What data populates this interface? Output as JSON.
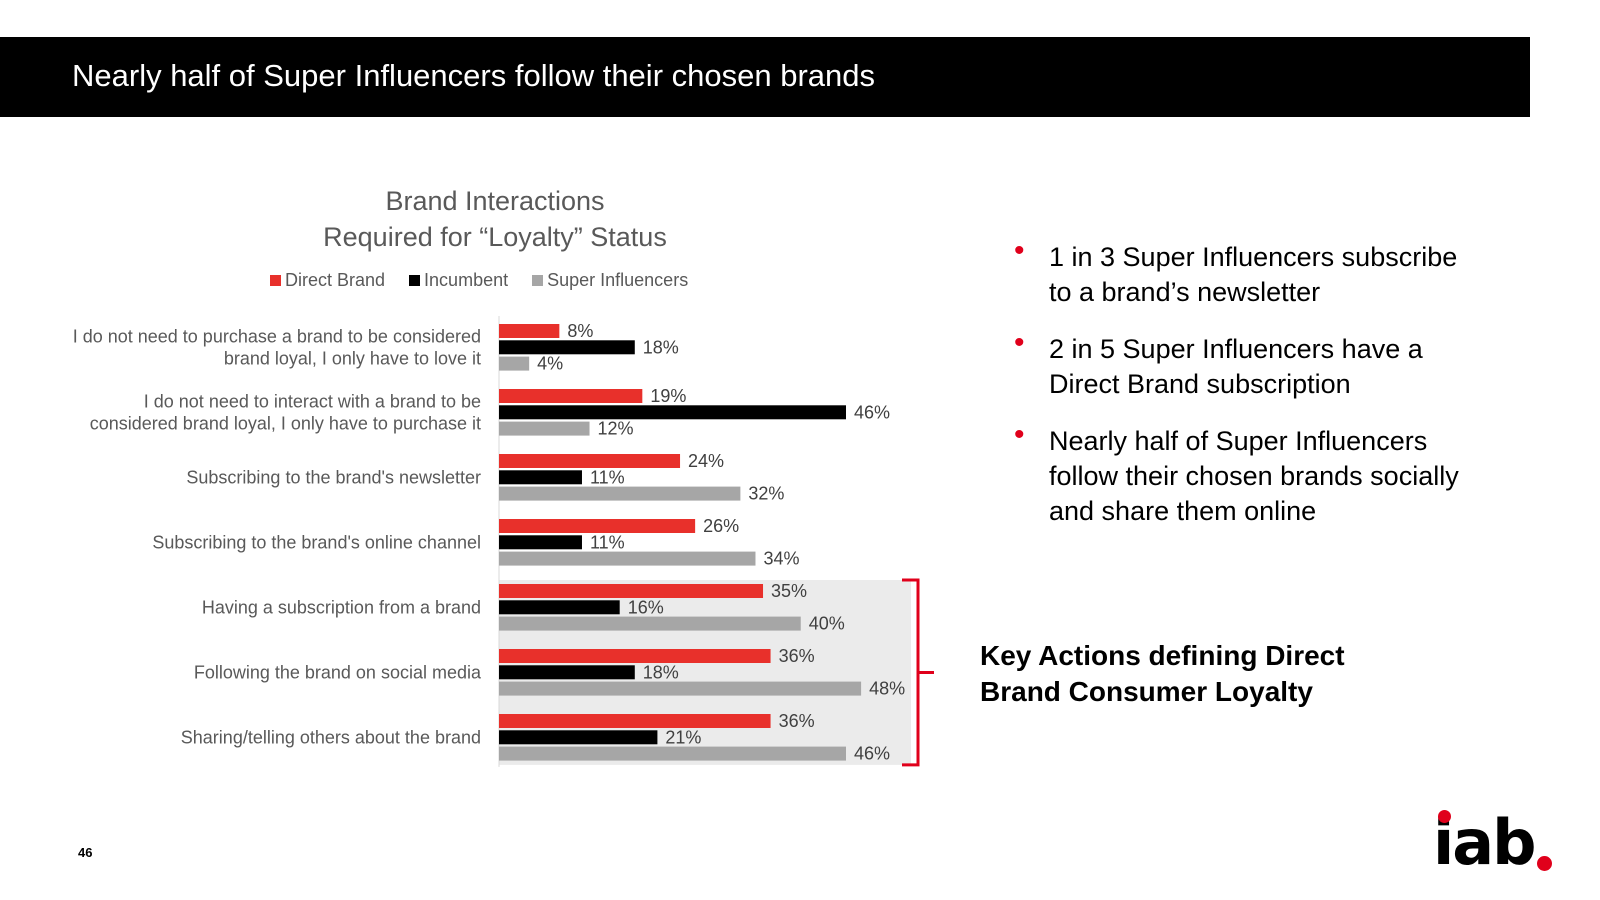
{
  "page": {
    "title": "Nearly half of Super Influencers follow their chosen brands",
    "page_number": "46",
    "logo_text": "iab"
  },
  "bullets": [
    "1 in 3 Super Influencers subscribe to a brand’s newsletter",
    "2 in 5 Super Influencers have a Direct Brand subscription",
    "Nearly half of Super Influencers follow their chosen brands socially and share them online"
  ],
  "bullet_symbol": "•",
  "key_actions": "Key Actions defining Direct Brand Consumer Loyalty",
  "colors": {
    "direct_brand": "#e8302b",
    "incumbent": "#000000",
    "super_influencers": "#a6a6a6",
    "highlight_background": "#ebebeb",
    "bracket": "#e0001b",
    "accent": "#e0001b"
  },
  "chart_data": {
    "type": "bar",
    "orientation": "horizontal",
    "title": [
      "Brand Interactions",
      "Required for “Loyalty” Status"
    ],
    "legend_position": "top",
    "grid": false,
    "xlim": [
      0,
      50
    ],
    "categories": [
      [
        "I do not need to purchase a brand to be considered",
        "brand loyal, I only have to love it"
      ],
      [
        "I do not need to interact with a brand to be",
        "considered brand loyal, I only have to purchase it"
      ],
      [
        "Subscribing to the brand's newsletter"
      ],
      [
        "Subscribing to the brand's online channel"
      ],
      [
        "Having a subscription from a brand"
      ],
      [
        "Following the brand on social media"
      ],
      [
        "Sharing/telling others about the brand"
      ]
    ],
    "series": [
      {
        "name": "Direct Brand",
        "values": [
          8,
          19,
          24,
          26,
          35,
          36,
          36
        ],
        "labels": [
          "8%",
          "19%",
          "24%",
          "26%",
          "35%",
          "36%",
          "36%"
        ]
      },
      {
        "name": "Incumbent",
        "values": [
          18,
          46,
          11,
          11,
          16,
          18,
          21
        ],
        "labels": [
          "18%",
          "46%",
          "11%",
          "11%",
          "16%",
          "18%",
          "21%"
        ]
      },
      {
        "name": "Super Influencers",
        "values": [
          4,
          12,
          32,
          34,
          40,
          48,
          46
        ],
        "labels": [
          "4%",
          "12%",
          "32%",
          "34%",
          "40%",
          "48%",
          "46%"
        ]
      }
    ],
    "highlighted_categories": [
      4,
      5,
      6
    ]
  }
}
